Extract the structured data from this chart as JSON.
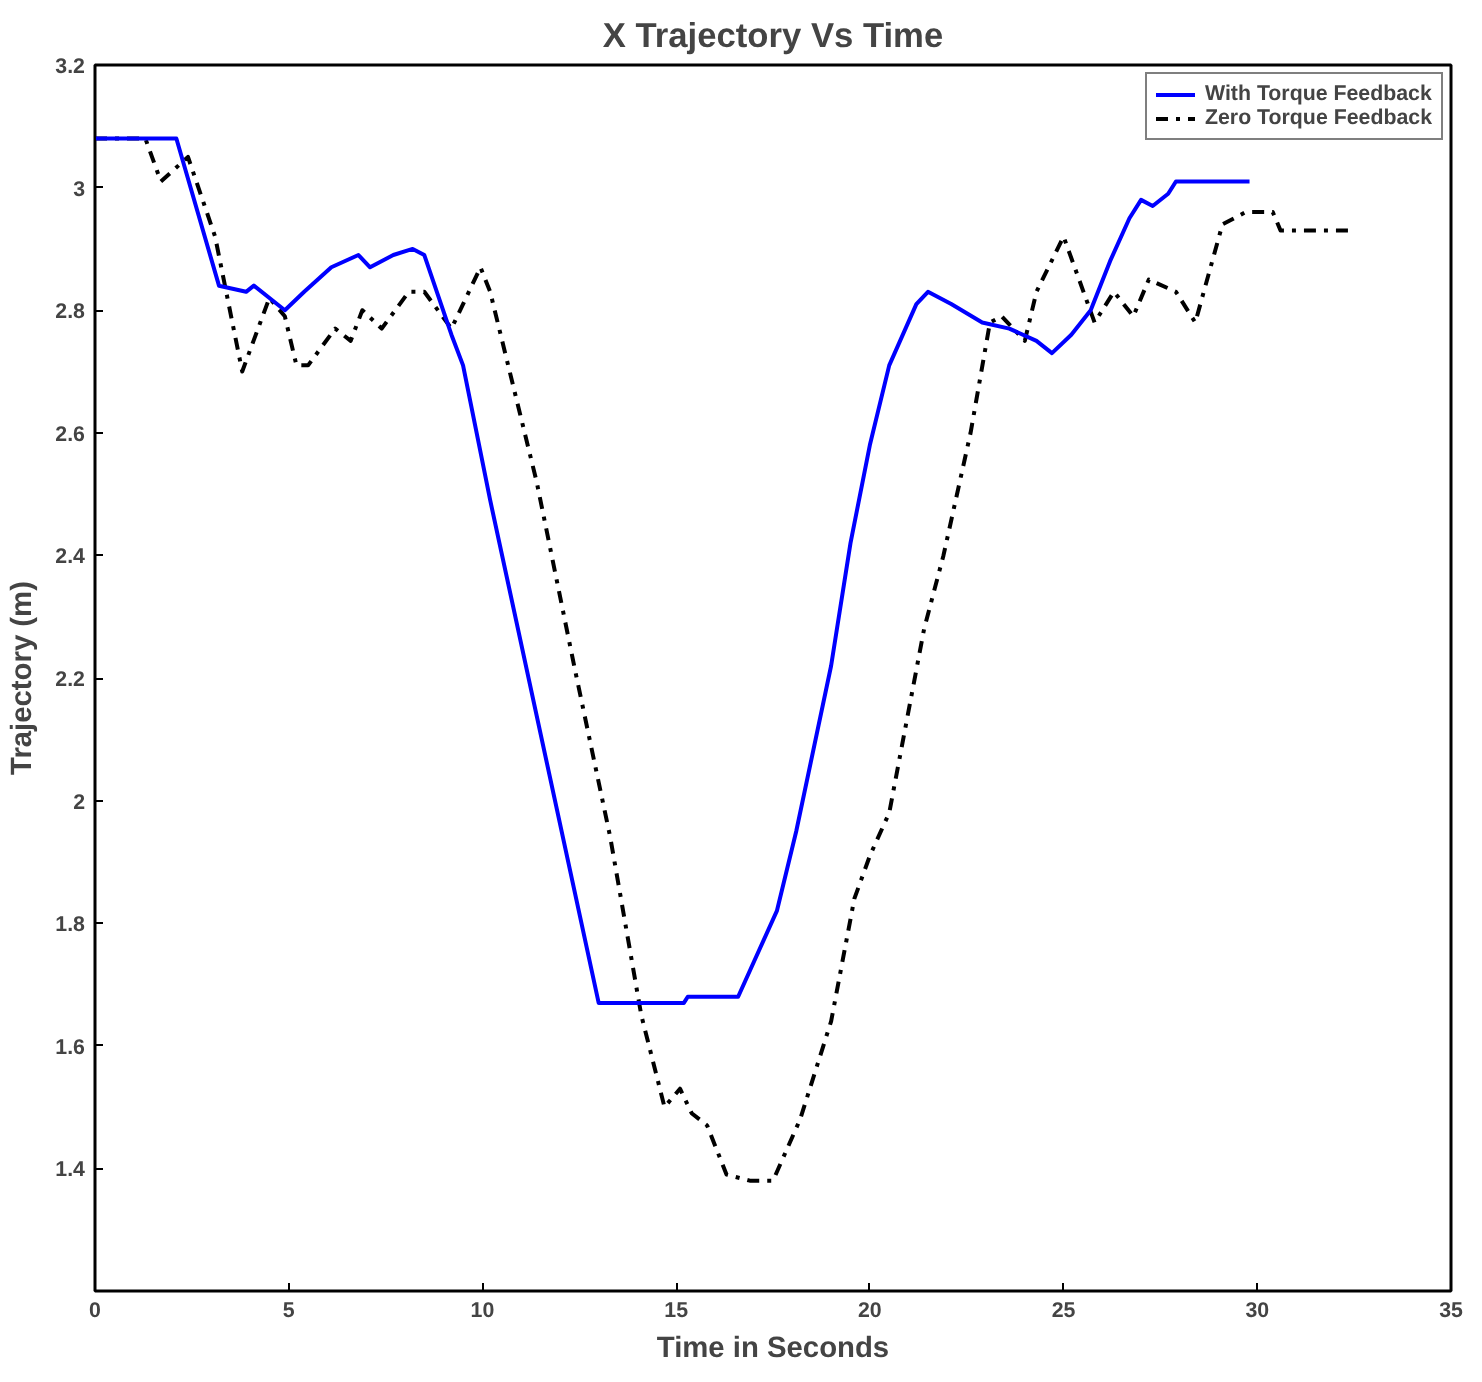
{
  "chart_data": {
    "type": "line",
    "title": "X Trajectory Vs Time",
    "xlabel": "Time in Seconds",
    "ylabel": "Trajectory (m)",
    "xlim": [
      0,
      35
    ],
    "xticks": [
      0,
      5,
      10,
      15,
      20,
      25,
      30,
      35
    ],
    "ylim": [
      1.2,
      3.2
    ],
    "yticks": [
      1.4,
      1.6,
      1.8,
      2,
      2.2,
      2.4,
      2.6,
      2.8,
      3,
      3.2
    ],
    "grid": false,
    "legend": "top right",
    "marker": "none",
    "series": [
      {
        "name": "With Torque Feedback",
        "color": "#0000ff",
        "line_style": "solid",
        "x": [
          0,
          2.1,
          3.2,
          3.9,
          4.1,
          4.9,
          5.4,
          6.1,
          6.8,
          7.1,
          7.7,
          8.2,
          8.5,
          9.2,
          9.5,
          10.2,
          13.0,
          15.2,
          15.3,
          16.6,
          17.6,
          18.1,
          19.0,
          19.5,
          20.0,
          20.5,
          21.2,
          21.5,
          22.1,
          22.9,
          23.6,
          24.3,
          24.7,
          25.2,
          25.7,
          26.2,
          26.7,
          27.0,
          27.3,
          27.7,
          27.9,
          29.8
        ],
        "values": [
          3.08,
          3.08,
          2.84,
          2.83,
          2.84,
          2.8,
          2.83,
          2.87,
          2.89,
          2.87,
          2.89,
          2.9,
          2.89,
          2.76,
          2.71,
          2.49,
          1.67,
          1.67,
          1.68,
          1.68,
          1.82,
          1.95,
          2.22,
          2.42,
          2.58,
          2.71,
          2.81,
          2.83,
          2.81,
          2.78,
          2.77,
          2.75,
          2.73,
          2.76,
          2.8,
          2.88,
          2.95,
          2.98,
          2.97,
          2.99,
          3.01,
          3.01
        ]
      },
      {
        "name": "Zero Torque Feedback",
        "color": "#000000",
        "line_style": "dashdot",
        "x": [
          0,
          1.3,
          1.7,
          2.4,
          3.1,
          3.8,
          4.5,
          4.9,
          5.2,
          5.5,
          6.2,
          6.6,
          6.9,
          7.4,
          8.1,
          8.5,
          9.2,
          9.95,
          10.2,
          11.4,
          12.4,
          13.3,
          14.1,
          14.7,
          15.1,
          15.4,
          15.8,
          16.3,
          16.9,
          17.5,
          18.2,
          19.0,
          19.6,
          20.0,
          20.5,
          21.4,
          21.9,
          22.6,
          23.1,
          23.4,
          24.0,
          24.3,
          25.0,
          25.8,
          26.3,
          26.8,
          27.2,
          27.9,
          28.4,
          29.1,
          29.7,
          30.4,
          30.6,
          32.4
        ],
        "values": [
          3.08,
          3.08,
          3.01,
          3.05,
          2.92,
          2.7,
          2.82,
          2.79,
          2.71,
          2.71,
          2.77,
          2.75,
          2.8,
          2.77,
          2.83,
          2.83,
          2.77,
          2.87,
          2.83,
          2.52,
          2.21,
          1.94,
          1.65,
          1.5,
          1.53,
          1.49,
          1.47,
          1.39,
          1.38,
          1.38,
          1.48,
          1.64,
          1.84,
          1.91,
          1.98,
          2.28,
          2.4,
          2.6,
          2.78,
          2.79,
          2.75,
          2.83,
          2.92,
          2.78,
          2.83,
          2.79,
          2.85,
          2.83,
          2.78,
          2.94,
          2.96,
          2.96,
          2.93,
          2.93
        ]
      }
    ]
  }
}
